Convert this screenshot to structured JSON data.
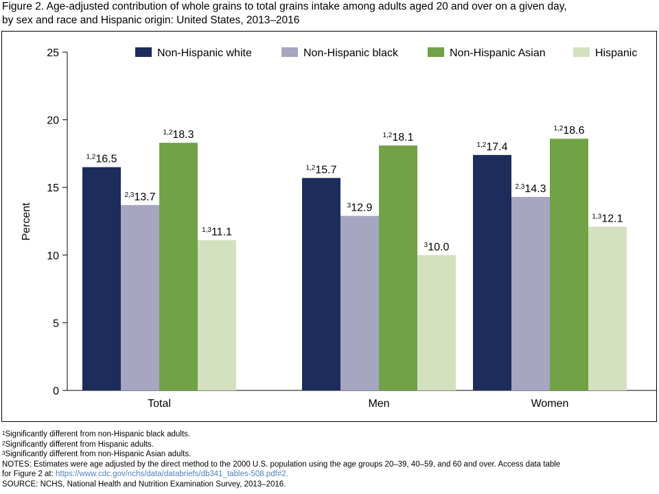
{
  "figure": {
    "title_line1": "Figure 2. Age-adjusted contribution of whole grains to total grains intake among adults aged 20 and over on a given day,",
    "title_line2": "by sex and race and Hispanic origin: United States, 2013–2016"
  },
  "colors": {
    "nh_white": "#1c2d5b",
    "nh_black": "#a6a6c3",
    "nh_asian": "#71a246",
    "hispanic": "#d4e1bf"
  },
  "chart_data": {
    "type": "bar",
    "categories": [
      "Total",
      "Men",
      "Women"
    ],
    "ylabel": "Percent",
    "ylim": [
      0,
      25
    ],
    "yticks": [
      "0",
      "5",
      "10",
      "15",
      "20",
      "25"
    ],
    "legend_position": "top",
    "series": [
      {
        "name": "Non-Hispanic white",
        "color": "#1c2d5b",
        "values": [
          16.5,
          15.7,
          17.4
        ],
        "labels": [
          "16.5",
          "15.7",
          "17.4"
        ],
        "sups": [
          "1,2",
          "1,2",
          "1,2"
        ]
      },
      {
        "name": "Non-Hispanic black",
        "color": "#a6a6c3",
        "values": [
          13.7,
          12.9,
          14.3
        ],
        "labels": [
          "13.7",
          "12.9",
          "14.3"
        ],
        "sups": [
          "2,3",
          "3",
          "2,3"
        ]
      },
      {
        "name": "Non-Hispanic Asian",
        "color": "#71a246",
        "values": [
          18.3,
          18.1,
          18.6
        ],
        "labels": [
          "18.3",
          "18.1",
          "18.6"
        ],
        "sups": [
          "1,2",
          "1,2",
          "1,2"
        ]
      },
      {
        "name": "Hispanic",
        "color": "#d4e1bf",
        "values": [
          11.1,
          10.0,
          12.1
        ],
        "labels": [
          "11.1",
          "10.0",
          "12.1"
        ],
        "sups": [
          "1,3",
          "3",
          "1,3"
        ]
      }
    ]
  },
  "notes": {
    "fn1_mark": "1",
    "fn1_text": "Significantly different from non-Hispanic black adults.",
    "fn2_mark": "2",
    "fn2_text": "Significantly different from Hispanic adults.",
    "fn3_mark": "3",
    "fn3_text": "Significantly different from non-Hispanic Asian adults.",
    "notes_line1": "NOTES: Estimates were age adjusted by the direct method to the 2000 U.S. population using the age groups 20–39, 40–59, and 60 and over. Access data table",
    "notes_line2_prefix": "for Figure 2 at: ",
    "notes_link": "https://www.cdc.gov/nchs/data/databriefs/db341_tables-508.pdf#2.",
    "source": "SOURCE: NCHS, National Health and Nutrition Examination Survey, 2013–2016."
  }
}
